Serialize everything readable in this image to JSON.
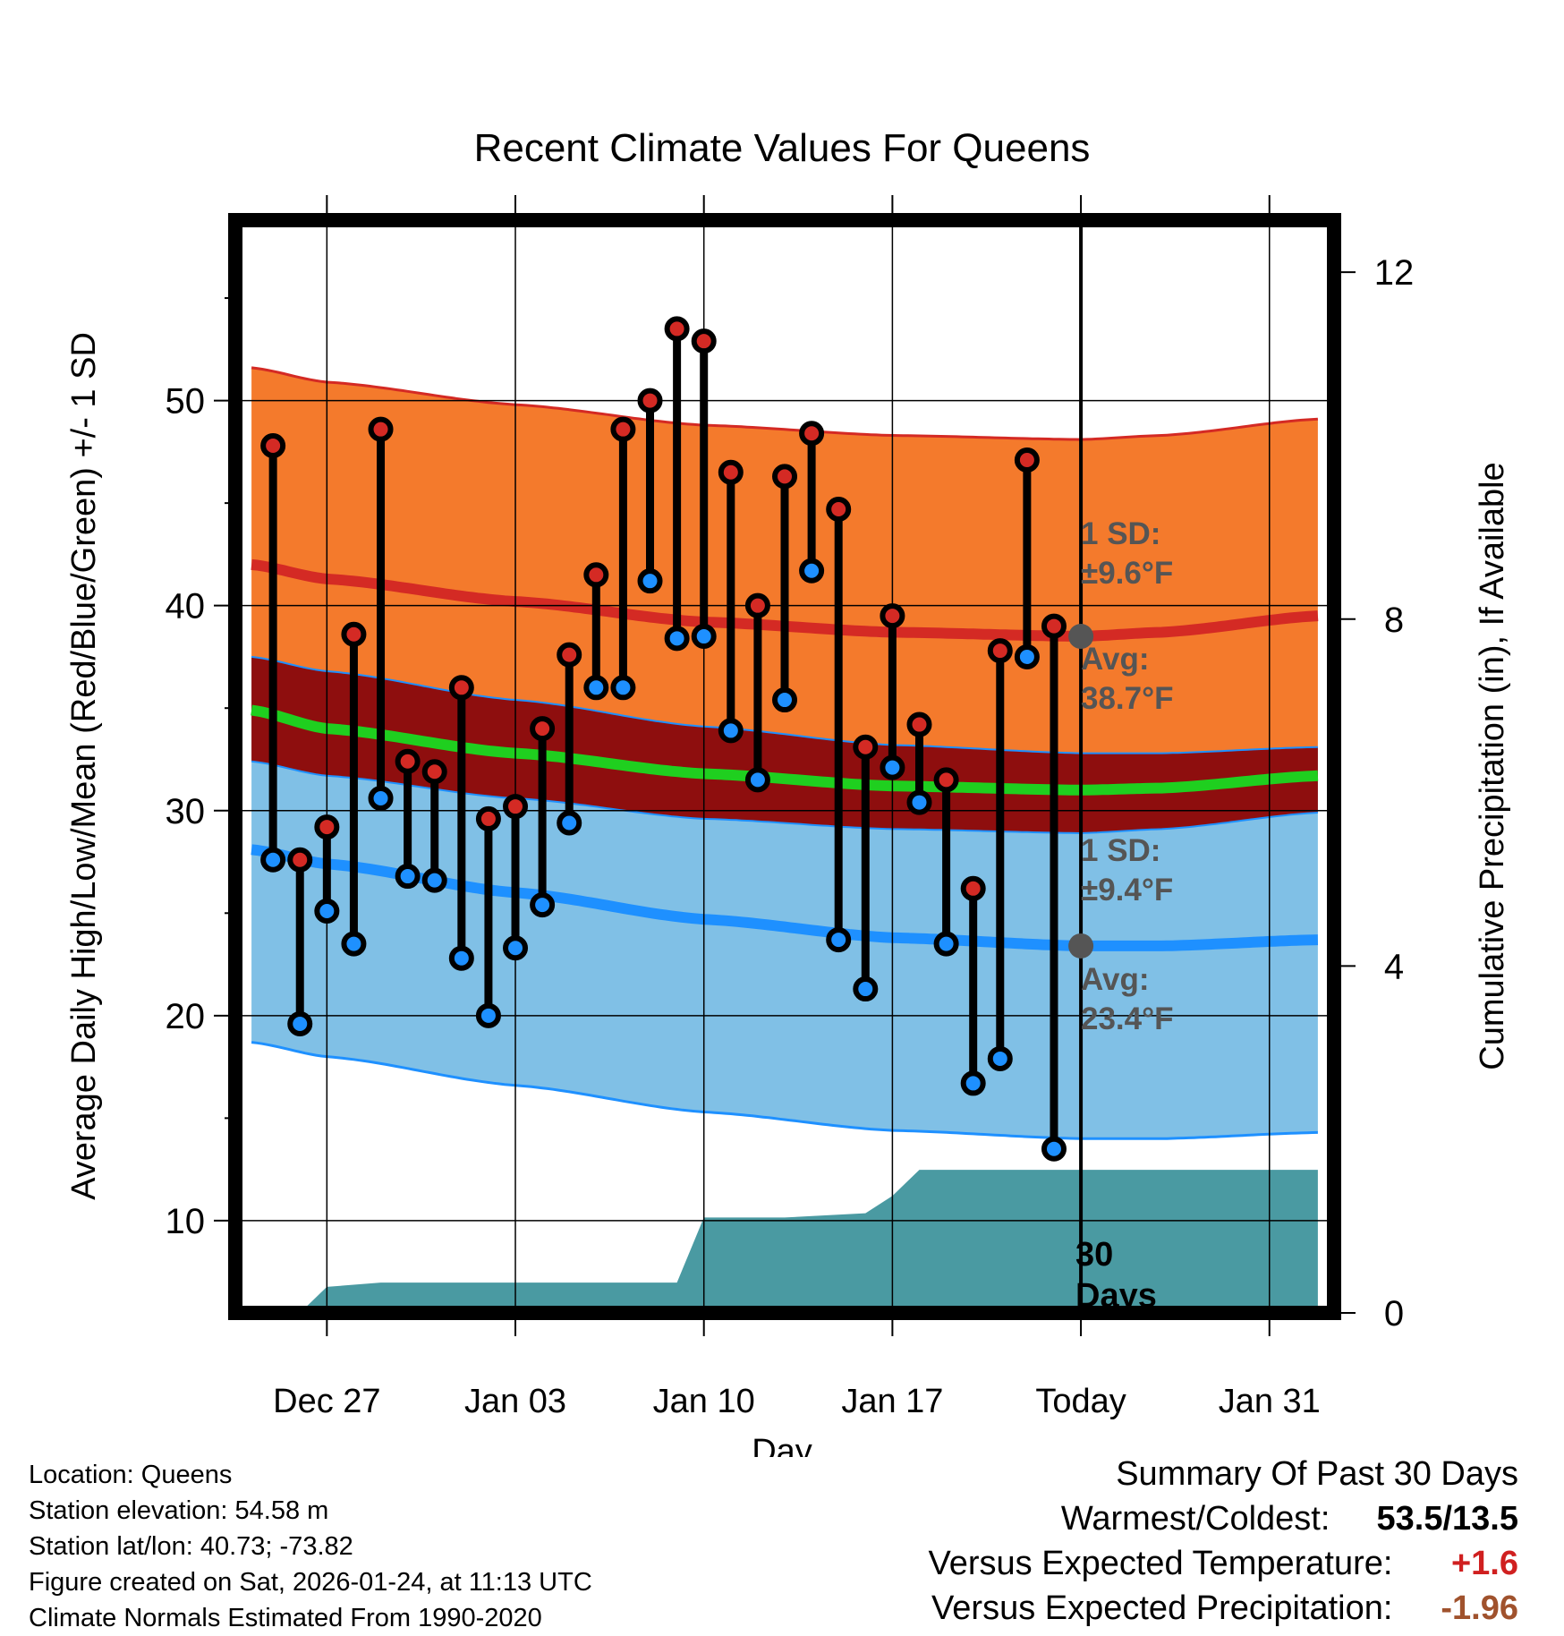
{
  "colors": {
    "high_band": "#F47A2C",
    "high_line": "#D42A24",
    "low_band": "#80C0E6",
    "low_line": "#1E90FF",
    "mean_band": "#8E0E0E",
    "mean_line": "#1FCF1F",
    "precip_fill": "#4A9AA2",
    "high_dot": "#D42A24",
    "low_dot": "#1E90FF",
    "annotation": "#555555",
    "warm_value": "#D02020",
    "precip_value": "#A0522D"
  },
  "chart_data": {
    "type": "line",
    "title": "Recent Climate Values For Queens",
    "xlabel": "Day",
    "ylabel": "Average Daily High/Low/Mean (Red/Blue/Green) +/- 1 SD",
    "y2label": "Cumulative Precipitation (in), If Available",
    "x_range": [
      -3.4,
      37.4
    ],
    "x_ticks": [
      {
        "x": 0,
        "label": "Dec 27"
      },
      {
        "x": 7,
        "label": "Jan 03"
      },
      {
        "x": 14,
        "label": "Jan 10"
      },
      {
        "x": 21,
        "label": "Jan 17"
      },
      {
        "x": 28,
        "label": "Today"
      },
      {
        "x": 35,
        "label": "Jan 31"
      }
    ],
    "ylim": [
      5.5,
      58.8
    ],
    "y_ticks": [
      10,
      20,
      30,
      40,
      50
    ],
    "y_minor_ticks": [
      15,
      25,
      35,
      45,
      55
    ],
    "y2lim": [
      0,
      12.6
    ],
    "y2_ticks": [
      0,
      4,
      8,
      12
    ],
    "today_x": 28,
    "normals": {
      "x": [
        -2.8,
        0,
        7,
        14,
        21,
        28,
        31,
        36.8
      ],
      "high_avg": [
        42.0,
        41.3,
        40.2,
        39.2,
        38.7,
        38.5,
        38.7,
        39.5
      ],
      "high_sd": 9.6,
      "mean_avg": [
        34.9,
        34.0,
        32.8,
        31.8,
        31.2,
        31.0,
        31.1,
        31.7
      ],
      "mean_band": 1.3,
      "low_avg": [
        28.1,
        27.4,
        26.0,
        24.7,
        23.8,
        23.4,
        23.4,
        23.7
      ],
      "low_sd": 9.4
    },
    "series": [
      {
        "name": "Daily High",
        "x": [
          -2,
          -1,
          0,
          1,
          2,
          3,
          4,
          5,
          6,
          7,
          8,
          9,
          10,
          11,
          12,
          13,
          14,
          15,
          16,
          17,
          18,
          19,
          20,
          21,
          22,
          23,
          24,
          25,
          26,
          27
        ],
        "values": [
          47.8,
          27.6,
          29.2,
          38.6,
          48.6,
          32.4,
          31.9,
          36.0,
          29.6,
          30.2,
          34.0,
          37.6,
          41.5,
          48.6,
          50.0,
          53.5,
          52.9,
          46.5,
          40.0,
          46.3,
          48.4,
          44.7,
          33.1,
          39.5,
          34.2,
          31.5,
          26.2,
          37.8,
          47.1,
          39.0
        ]
      },
      {
        "name": "Daily Low",
        "x": [
          -2,
          -1,
          0,
          1,
          2,
          3,
          4,
          5,
          6,
          7,
          8,
          9,
          10,
          11,
          12,
          13,
          14,
          15,
          16,
          17,
          18,
          19,
          20,
          21,
          22,
          23,
          24,
          25,
          26,
          27
        ],
        "values": [
          27.6,
          19.6,
          25.1,
          23.5,
          30.6,
          26.8,
          26.6,
          22.8,
          20.0,
          23.3,
          25.4,
          29.4,
          36.0,
          36.0,
          41.2,
          38.4,
          38.5,
          33.9,
          31.5,
          35.4,
          41.7,
          23.7,
          21.3,
          32.1,
          30.4,
          23.5,
          16.7,
          17.9,
          37.5,
          13.5
        ]
      },
      {
        "name": "Cumulative Precipitation",
        "x": [
          -1,
          0,
          2,
          13,
          14,
          17,
          20,
          21,
          22,
          36.8
        ],
        "values": [
          0,
          0.3,
          0.35,
          0.35,
          1.1,
          1.1,
          1.15,
          1.35,
          1.65,
          1.65
        ]
      }
    ],
    "annotations": {
      "high_sd": "1 SD:",
      "high_sd_value": "±9.6°F",
      "high_avg": "Avg:",
      "high_avg_value": "38.7°F",
      "low_sd": "1 SD:",
      "low_sd_value": "±9.4°F",
      "low_avg": "Avg:",
      "low_avg_value": "23.4°F",
      "days_number": "30",
      "days_word": "Days"
    }
  },
  "footer": {
    "location": "Location: Queens",
    "elevation": "Station elevation: 54.58 m",
    "latlon": "Station lat/lon: 40.73; -73.82",
    "created": "Figure created on Sat, 2026-01-24, at 11:13 UTC",
    "normals": "Climate Normals Estimated From 1990-2020"
  },
  "summary": {
    "heading": "Summary Of Past 30 Days",
    "warm_cold_label": "Warmest/Coldest:",
    "warm_cold_value": "53.5/13.5",
    "temp_label": "Versus Expected Temperature:",
    "temp_value": "+1.6",
    "precip_label": "Versus Expected Precipitation:",
    "precip_value": "-1.96"
  }
}
